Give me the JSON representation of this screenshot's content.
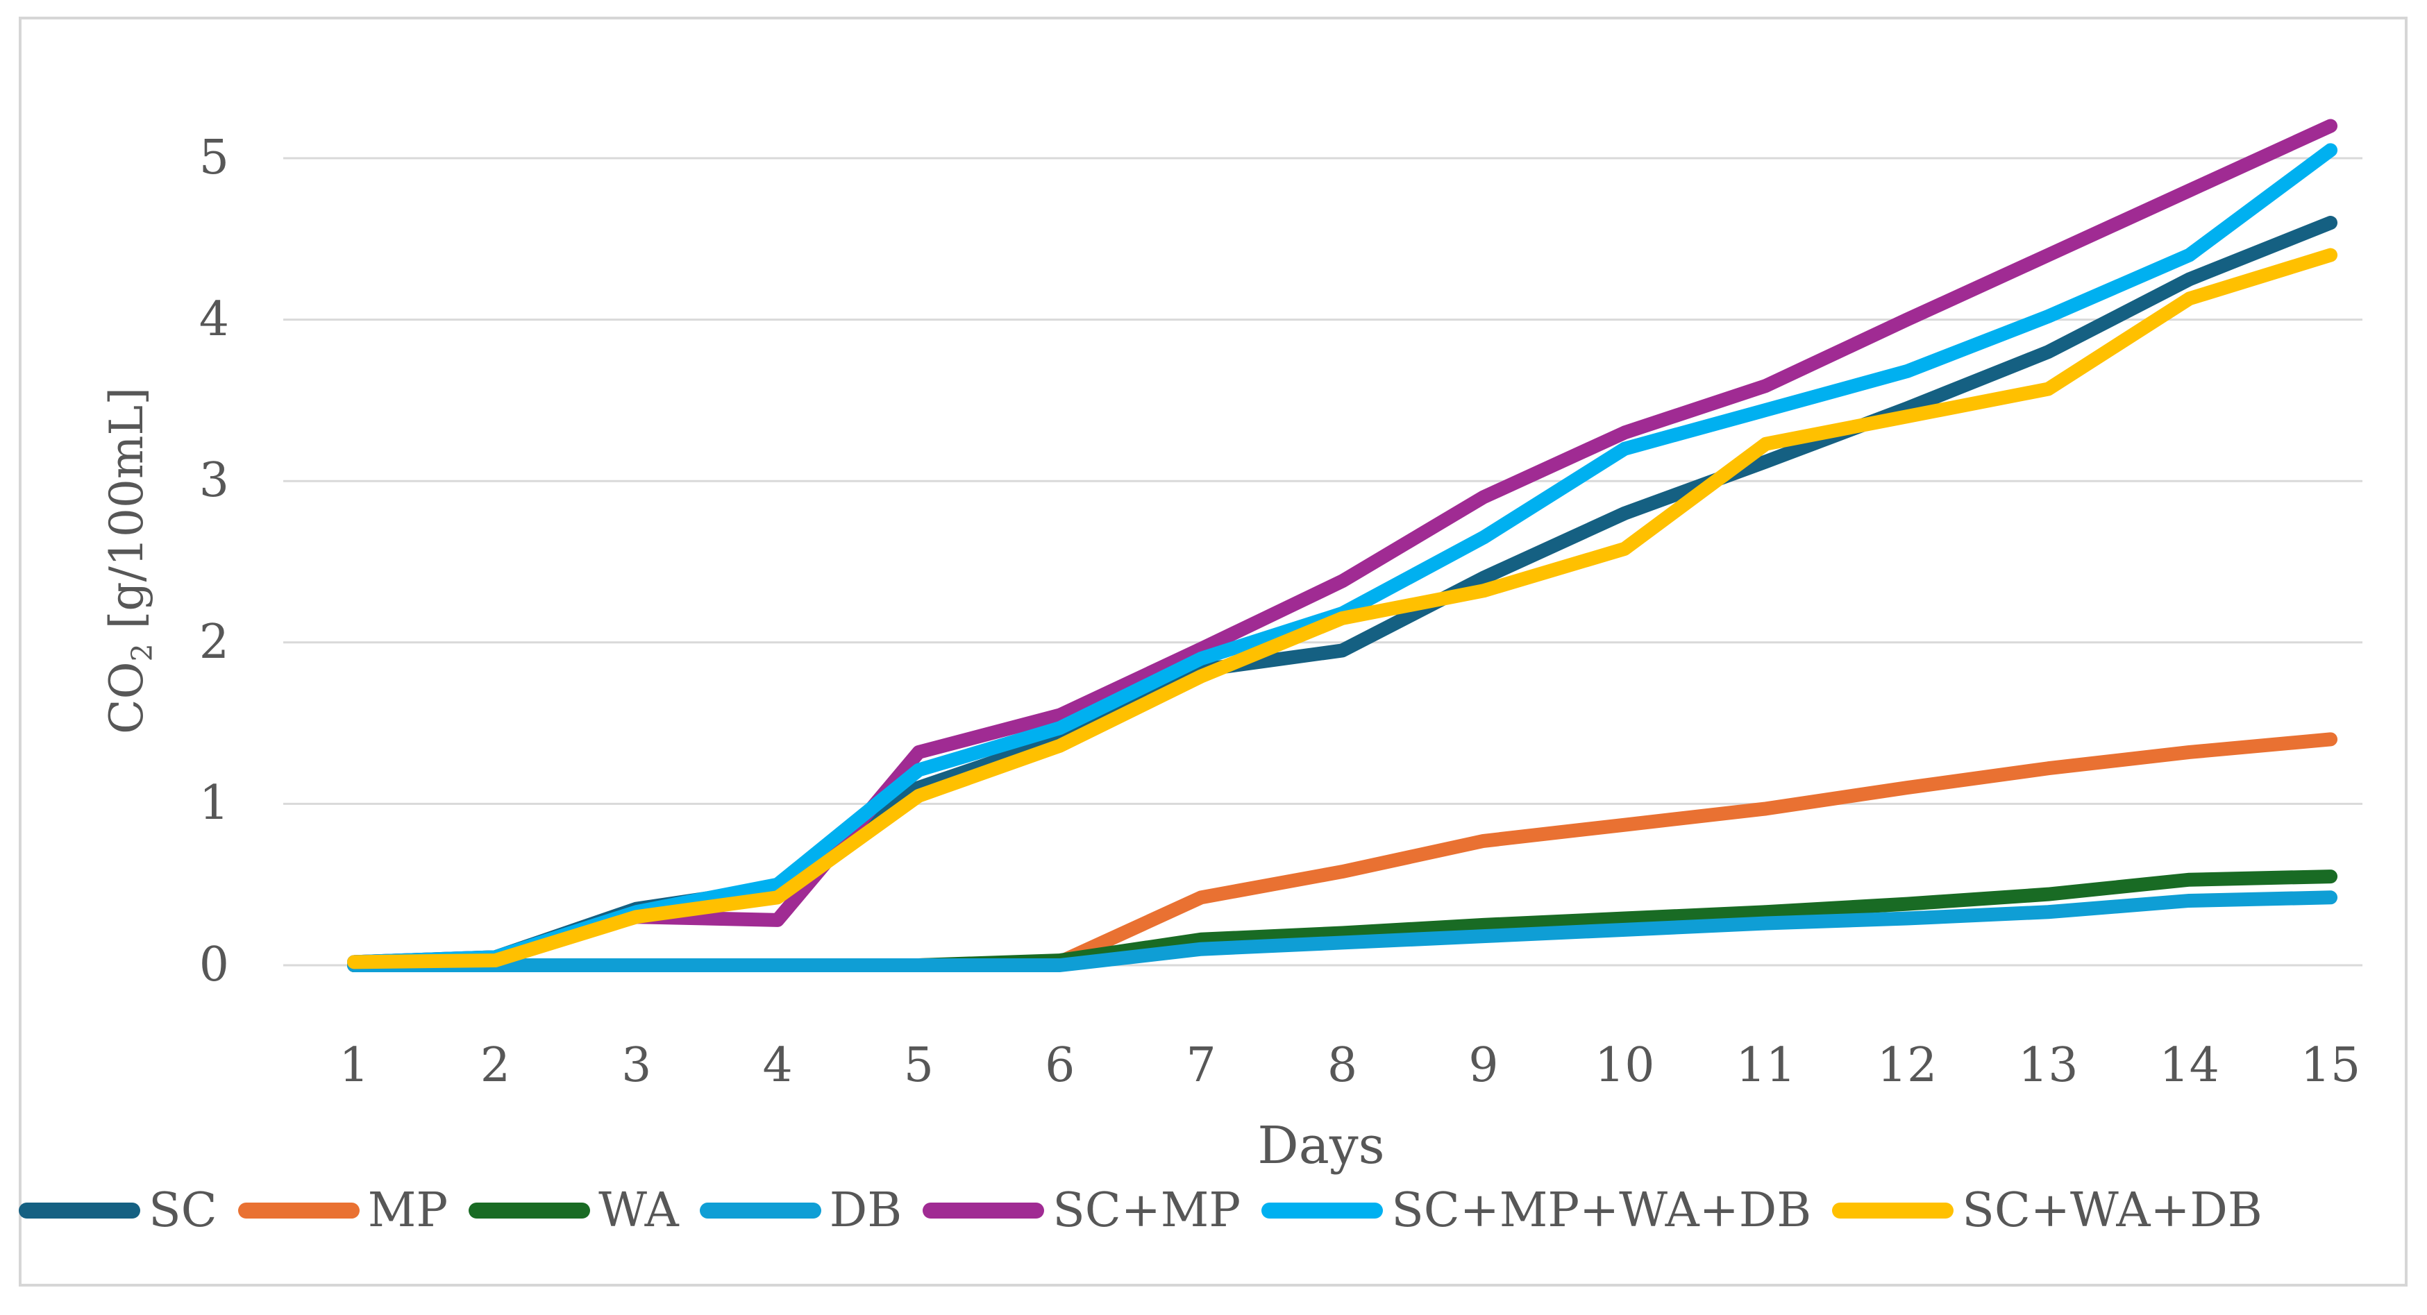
{
  "figure": {
    "y_axis_label_prefix": "CO",
    "y_axis_label_sub": "2",
    "y_axis_label_suffix": " [g/100mL]",
    "x_axis_title": "Days"
  },
  "chart_data": {
    "type": "line",
    "title": "",
    "xlabel": "Days",
    "ylabel": "CO2 [g/100mL]",
    "x": [
      1,
      2,
      3,
      4,
      5,
      6,
      7,
      8,
      9,
      10,
      11,
      12,
      13,
      14,
      15
    ],
    "ylim": [
      0,
      5.4
    ],
    "yticks": [
      0,
      1,
      2,
      3,
      4,
      5
    ],
    "grid": "horizontal",
    "gridline_color": "#d9d9d9",
    "text_color": "#575757",
    "legend_position": "bottom",
    "series": [
      {
        "name": "SC",
        "color": "#156082",
        "values": [
          0.02,
          0.05,
          0.35,
          0.48,
          1.1,
          1.4,
          1.83,
          1.95,
          2.4,
          2.8,
          3.12,
          3.45,
          3.8,
          4.25,
          4.6
        ]
      },
      {
        "name": "MP",
        "color": "#E97132",
        "values": [
          0.0,
          0.0,
          0.0,
          0.0,
          0.0,
          0.02,
          0.42,
          0.58,
          0.77,
          0.87,
          0.97,
          1.1,
          1.22,
          1.32,
          1.4
        ]
      },
      {
        "name": "WA",
        "color": "#196B24",
        "values": [
          0.0,
          0.0,
          0.0,
          0.0,
          0.0,
          0.03,
          0.16,
          0.2,
          0.25,
          0.29,
          0.33,
          0.38,
          0.44,
          0.53,
          0.55
        ]
      },
      {
        "name": "DB",
        "color": "#0F9ED5",
        "values": [
          0.0,
          0.0,
          0.0,
          0.0,
          0.0,
          0.0,
          0.1,
          0.14,
          0.18,
          0.22,
          0.26,
          0.29,
          0.33,
          0.4,
          0.42
        ]
      },
      {
        "name": "SC+MP",
        "color": "#A02B93",
        "values": [
          0.02,
          0.05,
          0.3,
          0.28,
          1.32,
          1.55,
          1.96,
          2.38,
          2.9,
          3.3,
          3.59,
          4.0,
          4.4,
          4.8,
          5.2
        ]
      },
      {
        "name": "SC+MP+WA+DB",
        "color": "#00B0F0",
        "values": [
          0.02,
          0.05,
          0.33,
          0.5,
          1.21,
          1.47,
          1.9,
          2.18,
          2.65,
          3.2,
          3.44,
          3.68,
          4.02,
          4.4,
          5.05
        ]
      },
      {
        "name": "SC+WA+DB",
        "color": "#FFC000",
        "values": [
          0.02,
          0.03,
          0.3,
          0.42,
          1.05,
          1.36,
          1.79,
          2.15,
          2.32,
          2.58,
          3.23,
          3.4,
          3.57,
          4.13,
          4.4
        ]
      }
    ]
  }
}
